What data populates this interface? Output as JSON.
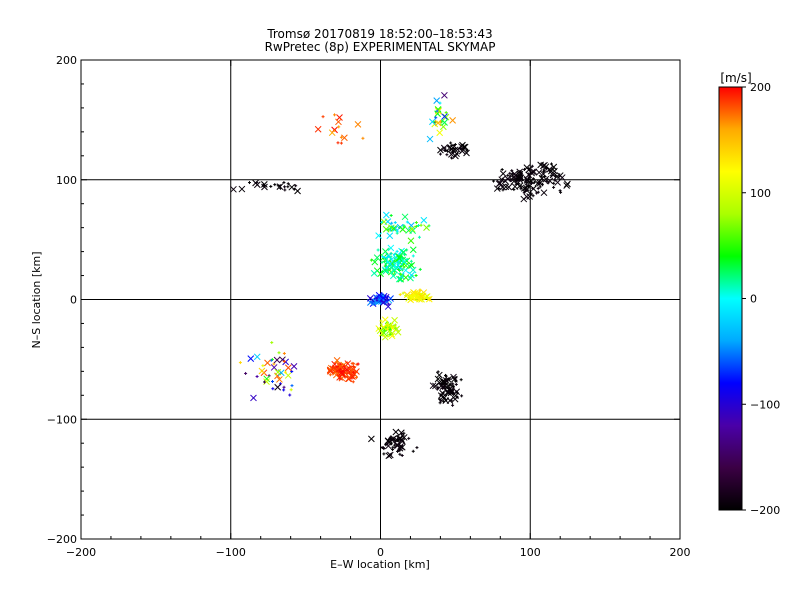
{
  "chart_data": {
    "type": "scatter",
    "title": "Tromsø 20170819 18:52:00–18:53:43",
    "subtitle": "RwPretec (8p) EXPERIMENTAL SKYMAP",
    "xlabel": "E–W location [km]",
    "ylabel": "N–S location [km]",
    "xlim": [
      -200,
      200
    ],
    "ylim": [
      -200,
      200
    ],
    "xticks": [
      -200,
      -100,
      0,
      100,
      200
    ],
    "yticks": [
      -200,
      -100,
      0,
      100,
      200
    ],
    "grid_lines": [
      -100,
      0,
      100
    ],
    "colorbar": {
      "label": "[m/s]",
      "range": [
        -200,
        200
      ],
      "ticks": [
        200,
        100,
        0,
        -100,
        -200
      ],
      "colormap": [
        "#000000",
        "#3b0044",
        "#4a00a8",
        "#0000ff",
        "#00aaff",
        "#00ffff",
        "#00ff00",
        "#aaff00",
        "#ffff00",
        "#ffaa00",
        "#ff0000"
      ]
    },
    "markers": [
      "x (cross)",
      "+ (plus)"
    ],
    "clusters": [
      {
        "x": 10,
        "y": 30,
        "spread": [
          18,
          18
        ],
        "count": 110,
        "velocity": [
          -20,
          60
        ]
      },
      {
        "x": 25,
        "y": 3,
        "spread": [
          14,
          6
        ],
        "count": 60,
        "velocity": [
          100,
          140
        ]
      },
      {
        "x": 0,
        "y": 0,
        "spread": [
          10,
          8
        ],
        "count": 50,
        "velocity": [
          -110,
          -30
        ]
      },
      {
        "x": -25,
        "y": -60,
        "spread": [
          14,
          12
        ],
        "count": 90,
        "velocity": [
          170,
          200
        ]
      },
      {
        "x": 5,
        "y": -25,
        "spread": [
          10,
          10
        ],
        "count": 45,
        "velocity": [
          40,
          120
        ]
      },
      {
        "x": 15,
        "y": 60,
        "spread": [
          25,
          15
        ],
        "count": 40,
        "velocity": [
          -40,
          80
        ]
      },
      {
        "x": 100,
        "y": 100,
        "spread": [
          30,
          18
        ],
        "count": 140,
        "velocity": [
          -200,
          -190
        ]
      },
      {
        "x": 50,
        "y": 125,
        "spread": [
          15,
          8
        ],
        "count": 35,
        "velocity": [
          -200,
          -190
        ]
      },
      {
        "x": 45,
        "y": -75,
        "spread": [
          14,
          20
        ],
        "count": 70,
        "velocity": [
          -200,
          -190
        ]
      },
      {
        "x": 10,
        "y": -120,
        "spread": [
          18,
          14
        ],
        "count": 55,
        "velocity": [
          -200,
          -190
        ]
      },
      {
        "x": -75,
        "y": 95,
        "spread": [
          30,
          6
        ],
        "count": 25,
        "velocity": [
          -200,
          -190
        ]
      },
      {
        "x": -70,
        "y": -60,
        "spread": [
          30,
          30
        ],
        "count": 45,
        "velocity": [
          -200,
          200
        ]
      },
      {
        "x": 40,
        "y": 150,
        "spread": [
          12,
          25
        ],
        "count": 25,
        "velocity": [
          -200,
          200
        ]
      },
      {
        "x": -30,
        "y": 140,
        "spread": [
          25,
          20
        ],
        "count": 15,
        "velocity": [
          150,
          200
        ]
      }
    ]
  }
}
